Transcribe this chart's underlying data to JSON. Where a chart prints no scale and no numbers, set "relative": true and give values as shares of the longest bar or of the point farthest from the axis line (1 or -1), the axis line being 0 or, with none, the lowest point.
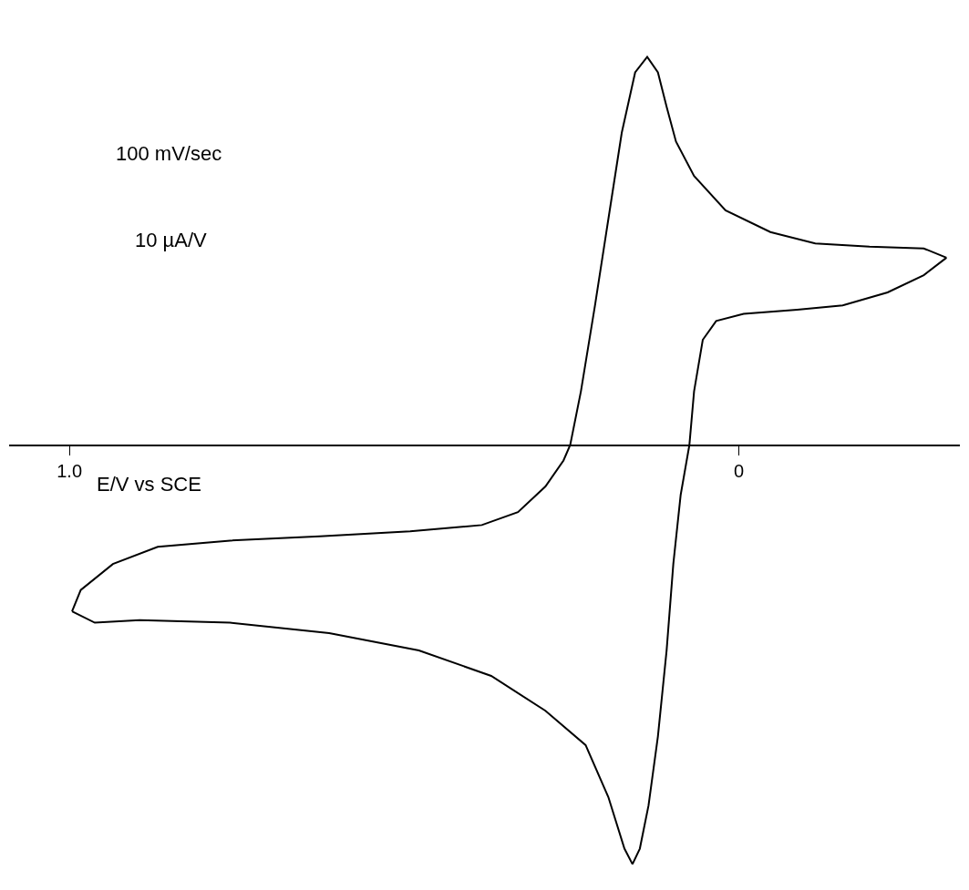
{
  "chart_data": {
    "type": "line",
    "relative": true,
    "xlabel": "E/V vs SCE",
    "annotations": [
      "100 mV/sec",
      "10 µA/V"
    ],
    "xlim": [
      1.09,
      -0.33
    ],
    "xticks": [
      {
        "value": 1.0,
        "label": "1.0"
      },
      0
    ],
    "marker": "none",
    "line_style": "solid",
    "series": [
      {
        "color": "#000000",
        "x": [
          0.996,
          0.983,
          0.935,
          0.868,
          0.76,
          0.626,
          0.491,
          0.384,
          0.33,
          0.289,
          0.262,
          0.252,
          0.236,
          0.215,
          0.195,
          0.175,
          0.155,
          0.137,
          0.121,
          0.108,
          0.094,
          0.067,
          0.02,
          -0.047,
          -0.114,
          -0.195,
          -0.276,
          -0.31
        ],
        "values": [
          -0.397,
          -0.346,
          -0.284,
          -0.243,
          -0.228,
          -0.218,
          -0.206,
          -0.191,
          -0.16,
          -0.099,
          -0.037,
          0,
          0.128,
          0.333,
          0.539,
          0.745,
          0.889,
          0.926,
          0.889,
          0.807,
          0.724,
          0.642,
          0.56,
          0.508,
          0.481,
          0.473,
          0.469,
          0.447
        ]
      },
      {
        "color": "#000000",
        "x": [
          -0.31,
          -0.276,
          -0.222,
          -0.155,
          -0.087,
          -0.007,
          0.034,
          0.054,
          0.067,
          0.074,
          0.087,
          0.098,
          0.108,
          0.121,
          0.135,
          0.148,
          0.159,
          0.171,
          0.195,
          0.229,
          0.289,
          0.37,
          0.478,
          0.612,
          0.76,
          0.895,
          0.962,
          0.996
        ],
        "values": [
          0.447,
          0.405,
          0.364,
          0.333,
          0.323,
          0.313,
          0.296,
          0.251,
          0.128,
          0,
          -0.119,
          -0.284,
          -0.49,
          -0.695,
          -0.86,
          -0.963,
          -1,
          -0.963,
          -0.84,
          -0.716,
          -0.634,
          -0.551,
          -0.49,
          -0.449,
          -0.424,
          -0.418,
          -0.424,
          -0.397
        ]
      }
    ]
  }
}
